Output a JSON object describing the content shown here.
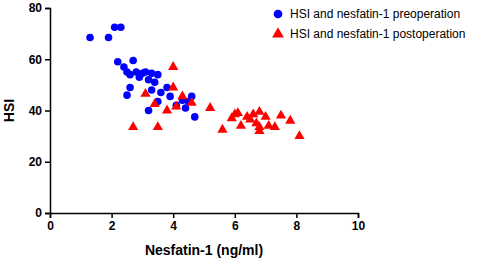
{
  "chart_data": {
    "type": "scatter",
    "x_label": "Nesfatin-1 (ng/ml)",
    "y_label": "HSI",
    "xlim": [
      0,
      10
    ],
    "xticks": [
      0,
      2,
      4,
      6,
      8,
      10
    ],
    "ylim": [
      0,
      80
    ],
    "yticks": [
      0,
      20,
      40,
      60,
      80
    ],
    "grid": false,
    "legend": "top-right",
    "series": [
      {
        "name": "HSI and nesfatin-1 preoperation",
        "color": "#0000ff",
        "marker": "circle",
        "x": [
          1.3,
          1.9,
          2.1,
          2.3,
          2.2,
          2.4,
          2.5,
          2.6,
          2.7,
          2.6,
          2.8,
          2.9,
          3.0,
          3.1,
          2.5,
          3.2,
          3.3,
          3.4,
          3.5,
          3.3,
          3.6,
          3.8,
          3.9,
          3.5,
          3.2,
          4.1,
          4.3,
          4.4,
          4.5,
          4.6,
          4.7
        ],
        "values": [
          68.5,
          68.5,
          72.5,
          72.5,
          59,
          57,
          55,
          54,
          59.5,
          49,
          55,
          53,
          54.5,
          55,
          46,
          52,
          54.5,
          51,
          54,
          48,
          47,
          49,
          45.5,
          43.5,
          40,
          42,
          44,
          41,
          43.5,
          45.5,
          37.5
        ]
      },
      {
        "name": "HSI and nesfatin-1 postoperation",
        "color": "#ff0000",
        "marker": "triangle",
        "x": [
          2.7,
          3.1,
          3.4,
          3.5,
          3.8,
          4.0,
          4.0,
          4.1,
          4.3,
          4.6,
          5.2,
          5.6,
          5.9,
          6.0,
          6.1,
          6.2,
          6.4,
          6.5,
          6.6,
          6.7,
          6.8,
          6.8,
          7.0,
          7.1,
          7.3,
          7.5,
          7.8,
          8.1,
          6.8
        ],
        "values": [
          33.5,
          46.5,
          42.5,
          33.5,
          40,
          57,
          49,
          41.5,
          45.5,
          43,
          41,
          32.5,
          37,
          38.5,
          39,
          34,
          37.5,
          36.5,
          38.5,
          35,
          39.5,
          33.5,
          37.5,
          34,
          33.5,
          38,
          36,
          30,
          32
        ]
      }
    ]
  }
}
